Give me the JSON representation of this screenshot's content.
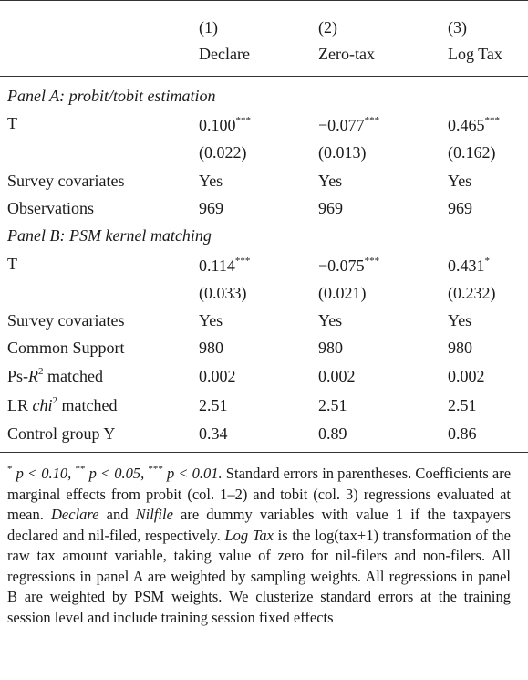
{
  "columns": [
    {
      "num": "(1)",
      "name": "Declare"
    },
    {
      "num": "(2)",
      "name": "Zero-tax"
    },
    {
      "num": "(3)",
      "name": "Log Tax"
    }
  ],
  "panel_a": {
    "title": "Panel A: probit/tobit estimation",
    "T_label": "T",
    "coefs": [
      {
        "value": "0.100",
        "stars": "***"
      },
      {
        "value": "−0.077",
        "stars": "***"
      },
      {
        "value": "0.465",
        "stars": "***"
      }
    ],
    "ses": [
      "(0.022)",
      "(0.013)",
      "(0.162)"
    ],
    "rows": [
      {
        "label": "Survey covariates",
        "values": [
          "Yes",
          "Yes",
          "Yes"
        ]
      },
      {
        "label": "Observations",
        "values": [
          "969",
          "969",
          "969"
        ]
      }
    ]
  },
  "panel_b": {
    "title": "Panel B: PSM kernel matching",
    "T_label": "T",
    "coefs": [
      {
        "value": "0.114",
        "stars": "***"
      },
      {
        "value": "−0.075",
        "stars": "***"
      },
      {
        "value": "0.431",
        "stars": "*"
      }
    ],
    "ses": [
      "(0.033)",
      "(0.021)",
      "(0.232)"
    ],
    "rows": [
      {
        "label": "Survey covariates",
        "values": [
          "Yes",
          "Yes",
          "Yes"
        ]
      },
      {
        "label": "Common Support",
        "values": [
          "980",
          "980",
          "980"
        ]
      },
      {
        "label_pre": "Ps-",
        "label_it": "R",
        "label_sup": "2",
        "label_post": " matched",
        "values": [
          "0.002",
          "0.002",
          "0.002"
        ]
      },
      {
        "label_pre": "LR ",
        "label_it": "chi",
        "label_sup": "2",
        "label_post": " matched",
        "values": [
          "2.51",
          "2.51",
          "2.51"
        ]
      },
      {
        "label": "Control group Y",
        "values": [
          "0.34",
          "0.89",
          "0.86"
        ]
      }
    ]
  },
  "note": {
    "s1": "*",
    "p1": "p < 0.10,",
    "s2": "**",
    "p2": "p < 0.05,",
    "s3": "***",
    "p3": "p < 0.01.",
    "t1": " Standard errors in parentheses. Coefficients are marginal effects from probit (col. 1–2) and tobit (col. 3) regressions evaluated at mean. ",
    "i1": "Declare",
    "t2": " and ",
    "i2": "Nilfile",
    "t3": " are dummy variables with value 1 if the taxpayers declared and nil-filed, respectively. ",
    "i3": "Log Tax",
    "t4": " is the log(tax+1) transformation of the raw tax amount variable, taking value of zero for nil-filers and non-filers. All regressions in panel A are weighted by sampling weights. All regressions in panel B are weighted by PSM weights. We clusterize standard errors at the training session level and include training session fixed effects"
  }
}
